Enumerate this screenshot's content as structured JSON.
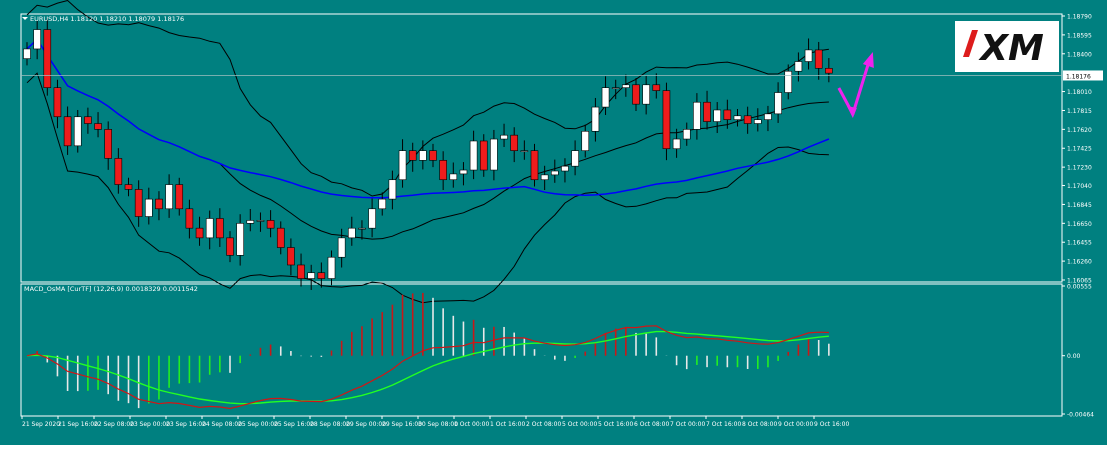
{
  "colors": {
    "background": "#008080",
    "frame": "#ffffff",
    "bull_candle": "#ffffff",
    "bear_candle": "#ee1c1c",
    "bands": "#000000",
    "ma": "#0000ff",
    "macd_line": "#d01616",
    "signal_line": "#22ff22",
    "hist_up": "#c81818",
    "hist_down": "#e8e8e8",
    "hist_green": "#22ee22",
    "arrow": "#ee22ee"
  },
  "header": {
    "symbol_line": "EURUSD,H4  1.18120 1.18210 1.18079 1.18176",
    "macd_line": "MACD_OsMA [CurTF] (12,26,9) 0.0018329 0.0011542"
  },
  "logo": {
    "text": "XM"
  },
  "chart_data": [
    {
      "type": "candlestick",
      "name": "EURUSD,H4",
      "ylim": [
        1.16065,
        1.1879
      ],
      "current_price_label": "1.18176",
      "yticks": [
        "1.18790",
        "1.18595",
        "1.18400",
        "1.18176",
        "1.18010",
        "1.17815",
        "1.17620",
        "1.17425",
        "1.17230",
        "1.17040",
        "1.16845",
        "1.16650",
        "1.16455",
        "1.16260",
        "1.16065"
      ],
      "close": [
        1.1845,
        1.1865,
        1.1805,
        1.1775,
        1.1745,
        1.1775,
        1.1768,
        1.1762,
        1.1732,
        1.1705,
        1.17,
        1.1672,
        1.169,
        1.168,
        1.1705,
        1.168,
        1.166,
        1.165,
        1.167,
        1.165,
        1.1632,
        1.1665,
        1.1668,
        1.1668,
        1.166,
        1.164,
        1.1622,
        1.1608,
        1.1614,
        1.1608,
        1.163,
        1.165,
        1.166,
        1.166,
        1.168,
        1.169,
        1.171,
        1.174,
        1.173,
        1.174,
        1.173,
        1.171,
        1.1716,
        1.172,
        1.175,
        1.172,
        1.1752,
        1.1756,
        1.174,
        1.174,
        1.171,
        1.1715,
        1.1719,
        1.1724,
        1.174,
        1.176,
        1.1785,
        1.1805,
        1.1805,
        1.1808,
        1.1788,
        1.1808,
        1.1802,
        1.1742,
        1.1752,
        1.1762,
        1.179,
        1.177,
        1.1782,
        1.1772,
        1.1776,
        1.1768,
        1.1772,
        1.1778,
        1.18,
        1.1822,
        1.1832,
        1.1844,
        1.1825,
        1.182
      ],
      "xtick_labels": [
        "21 Sep 2020",
        "21 Sep 16:00",
        "22 Sep 08:00",
        "23 Sep 00:00",
        "23 Sep 16:00",
        "24 Sep 08:00",
        "25 Sep 00:00",
        "25 Sep 16:00",
        "28 Sep 08:00",
        "29 Sep 00:00",
        "29 Sep 16:00",
        "30 Sep 08:00",
        "1 Oct 00:00",
        "1 Oct 16:00",
        "2 Oct 08:00",
        "5 Oct 00:00",
        "5 Oct 16:00",
        "6 Oct 08:00",
        "7 Oct 00:00",
        "7 Oct 16:00",
        "8 Oct 08:00",
        "9 Oct 00:00",
        "9 Oct 16:00"
      ],
      "indicators": [
        "Bollinger Bands",
        "Moving Average"
      ],
      "grid": false
    },
    {
      "type": "histogram+lines",
      "name": "MACD_OsMA [CurTF] (12,26,9)",
      "ylim": [
        -0.00464,
        0.00555
      ],
      "yticks": [
        "0.00555",
        "0.00",
        "-0.00464"
      ],
      "macd_value": 0.0018329,
      "signal_value": 0.0011542
    }
  ]
}
